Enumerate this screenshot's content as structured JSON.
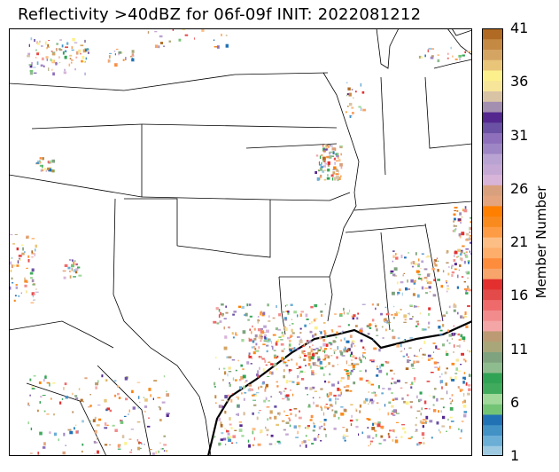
{
  "title": "Reflectivity $>$40dBZ for 06f-09f INIT: 2022081212",
  "title_display": "Reflectivity >40dBZ for 06f-09f INIT: 2022081212",
  "colorbar": {
    "label": "Member Number",
    "min": 1,
    "max": 41,
    "ticks": [
      {
        "value": 1,
        "label": "1"
      },
      {
        "value": 6,
        "label": "6"
      },
      {
        "value": 11,
        "label": "11"
      },
      {
        "value": 16,
        "label": "16"
      },
      {
        "value": 21,
        "label": "21"
      },
      {
        "value": 26,
        "label": "26"
      },
      {
        "value": 31,
        "label": "31"
      },
      {
        "value": 36,
        "label": "36"
      },
      {
        "value": 41,
        "label": "41"
      }
    ],
    "colors": [
      "#9ecae1",
      "#6baed6",
      "#4292c6",
      "#2171b5",
      "#74c476",
      "#a1d99b",
      "#41ab5d",
      "#31a354",
      "#8fbc8f",
      "#7fa37f",
      "#a9a77a",
      "#bc9a73",
      "#f4a6a6",
      "#f28c8c",
      "#ef6b6b",
      "#e34a4a",
      "#e3302f",
      "#f7a56b",
      "#fd8d3c",
      "#fdae6b",
      "#fdbe85",
      "#fd9c44",
      "#f98a1e",
      "#ff7f00",
      "#e4a47d",
      "#d9a07e",
      "#d8b4d8",
      "#c5a9d4",
      "#b9a3d2",
      "#9e86c4",
      "#8d6fbb",
      "#6a51a3",
      "#54278f",
      "#a38fb0",
      "#d8c3a5",
      "#f7e59a",
      "#fcf08c",
      "#e9c57a",
      "#d4a463",
      "#c48a44",
      "#b06a23"
    ]
  }
}
